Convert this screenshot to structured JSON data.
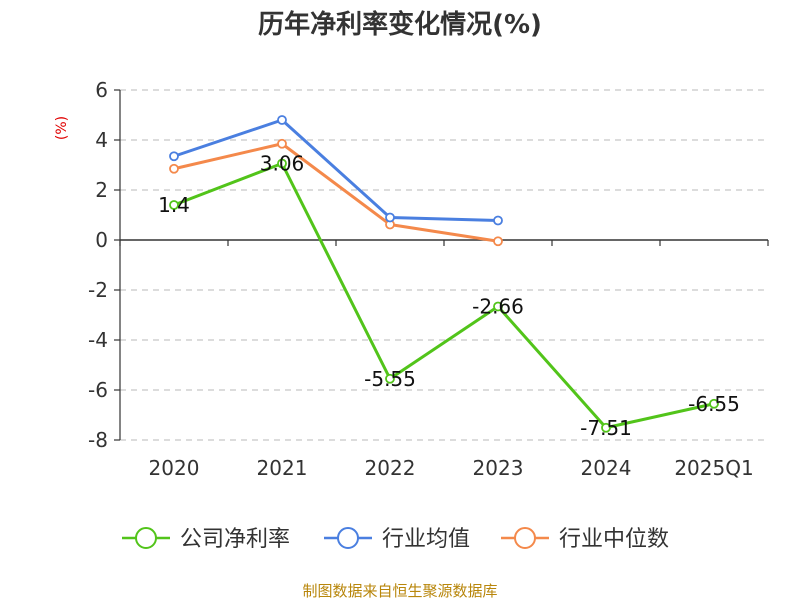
{
  "chart_data": {
    "type": "line",
    "title": "历年净利率变化情况(%)",
    "ylabel": "(%)",
    "categories": [
      "2020",
      "2021",
      "2022",
      "2023",
      "2024",
      "2025Q1"
    ],
    "ylim": [
      -8,
      6
    ],
    "yticks": [
      6,
      4,
      2,
      0,
      -2,
      -4,
      -6,
      -8
    ],
    "grid": true,
    "legend_position": "bottom",
    "series": [
      {
        "name": "公司净利率",
        "color": "#52c41a",
        "values": [
          1.4,
          3.06,
          -5.55,
          -2.66,
          -7.51,
          -6.55
        ],
        "show_labels": true
      },
      {
        "name": "行业均值",
        "color": "#4a7fe0",
        "values": [
          3.35,
          4.8,
          0.9,
          0.78,
          null,
          null
        ],
        "show_labels": false
      },
      {
        "name": "行业中位数",
        "color": "#f4894b",
        "values": [
          2.85,
          3.85,
          0.62,
          -0.05,
          null,
          null
        ],
        "show_labels": false
      }
    ]
  },
  "source": "制图数据来自恒生聚源数据库"
}
